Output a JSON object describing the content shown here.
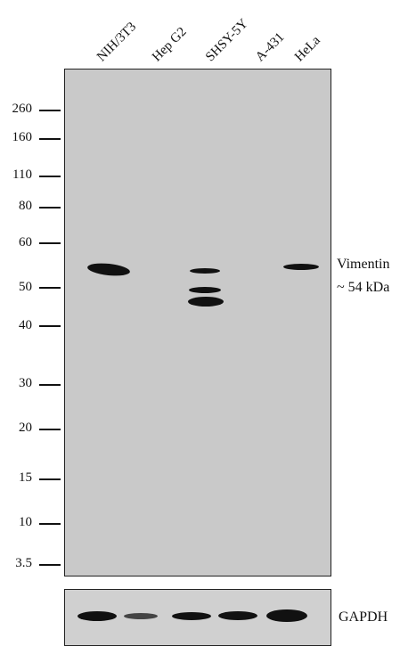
{
  "lanes": [
    "NIH/3T3",
    "Hep G2",
    "SHSY-5Y",
    "A-431",
    "HeLa"
  ],
  "markers": [
    "260",
    "160",
    "110",
    "80",
    "60",
    "50",
    "40",
    "30",
    "20",
    "15",
    "10",
    "3.5"
  ],
  "target": {
    "name": "Vimentin",
    "size": "~ 54 kDa"
  },
  "loading_control": "GAPDH"
}
